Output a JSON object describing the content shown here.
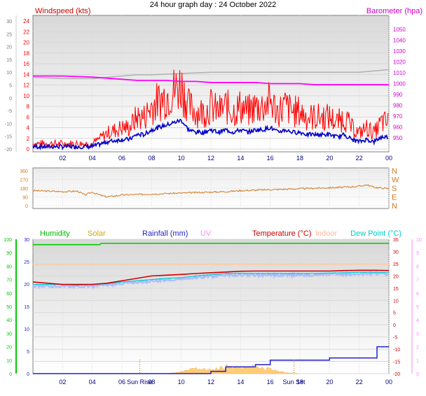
{
  "page_title": "24 hour graph day : 24 October 2022",
  "colors": {
    "wind": "#ff0000",
    "gust_base": "#0000cc",
    "baro": "#ff00ff",
    "baro_axis": "#cc00cc",
    "grey_ref": "#b0b0b0",
    "dir": "#d07a20",
    "humidity": "#00cc00",
    "solar": "#ccaa00",
    "rain": "#2222cc",
    "uv": "#ff88ff",
    "temp": "#cc0000",
    "indoor": "#ffcca0",
    "dew": "#00cccc",
    "dew_fill": "#aabbff",
    "frame": "#808080",
    "grid": "#d8d8d8",
    "tick_text": "#777777",
    "hour_text": "#000080"
  },
  "hours": [
    "02",
    "04",
    "06",
    "08",
    "10",
    "12",
    "14",
    "16",
    "18",
    "20",
    "22",
    "00"
  ],
  "panel1": {
    "left_label": "Windspeed (kts)",
    "right_label": "Barometer (hpa)",
    "left_ticks": [
      "24",
      "22",
      "20",
      "18",
      "16",
      "14",
      "12",
      "10",
      "8",
      "6",
      "4",
      "2",
      "0"
    ],
    "outer_ticks": [
      "30",
      "25",
      "20",
      "15",
      "10",
      "5",
      "0",
      "-5",
      "-10",
      "-15",
      "-20"
    ],
    "right_ticks": [
      "1050",
      "1040",
      "1030",
      "1020",
      "1010",
      "1000",
      "990",
      "980",
      "970",
      "960",
      "950"
    ]
  },
  "panel2": {
    "left_ticks": [
      "360",
      "270",
      "180",
      "90",
      "0"
    ],
    "right_labels": [
      "N",
      "W",
      "S",
      "E",
      "N"
    ]
  },
  "panel3": {
    "legend": {
      "humidity": "Humidity",
      "solar": "Solar",
      "rain": "Rainfall (mm)",
      "uv": "UV",
      "temp": "Temperature (°C)",
      "indoor": "Indoor",
      "dew": "Dew Point (°C)"
    },
    "humidity_ticks": [
      "100",
      "90",
      "80",
      "70",
      "60",
      "50",
      "40",
      "30",
      "20",
      "10",
      "0"
    ],
    "rain_ticks": [
      "30",
      "25",
      "20",
      "15",
      "10",
      "5",
      "0"
    ],
    "temp_ticks": [
      "35",
      "30",
      "25",
      "20",
      "15",
      "10",
      "5",
      "0",
      "-5",
      "-10",
      "-15",
      "-20"
    ],
    "uv_ticks": [
      "10",
      "9",
      "8",
      "7",
      "6",
      "5",
      "4",
      "3",
      "2",
      "1",
      "0"
    ],
    "sun_markers": [
      {
        "label": "Sun Rise",
        "hour": 7.2
      },
      {
        "label": "Sun Set",
        "hour": 17.6
      }
    ]
  },
  "chart_data": [
    {
      "type": "line",
      "title": "24 hour graph day : 24 October 2022",
      "ylabel": "Windspeed (kts)",
      "ylabel_right": "Barometer (hpa)",
      "ylim": [
        0,
        24
      ],
      "ylim_right": [
        950,
        1050
      ],
      "x_ticks": [
        "02",
        "04",
        "06",
        "08",
        "10",
        "12",
        "14",
        "16",
        "18",
        "20",
        "22",
        "00"
      ],
      "series": [
        {
          "name": "Windspeed (kts)",
          "x": [
            0,
            1,
            2,
            3,
            4,
            4.5,
            5,
            6,
            6.5,
            7,
            7.5,
            8,
            8.5,
            9,
            9.5,
            10,
            10.5,
            11,
            11.5,
            12,
            12.5,
            13,
            13.5,
            14,
            14.5,
            15,
            15.5,
            16,
            16.5,
            17,
            17.5,
            18,
            18.5,
            19,
            19.5,
            20,
            20.5,
            21,
            21.5,
            22,
            22.5,
            23,
            23.5,
            24
          ],
          "values": [
            1,
            1,
            1,
            1,
            1,
            2,
            3,
            4,
            4,
            6,
            6,
            8,
            9,
            10,
            11,
            12,
            8,
            7,
            7,
            8,
            7,
            8,
            7,
            8,
            7,
            8,
            8,
            9,
            7,
            8,
            7,
            7,
            6,
            6,
            6,
            6,
            5,
            6,
            4,
            3,
            4,
            3,
            5,
            5
          ]
        },
        {
          "name": "",
          "x": [
            0,
            2,
            4,
            6,
            7,
            8,
            9,
            10,
            11,
            12,
            13,
            14,
            15,
            16,
            17,
            18,
            19,
            20,
            21,
            22,
            23,
            23.5,
            24
          ],
          "values": [
            1007,
            1007,
            1006,
            1004,
            1003,
            1003,
            1003,
            1002,
            1002,
            1001,
            1001,
            1001,
            1001,
            1000,
            1000,
            1000,
            999,
            999,
            999,
            999,
            999,
            999,
            999
          ]
        }
      ]
    },
    {
      "type": "line",
      "ylim": [
        0,
        360
      ],
      "x_ticks": [
        "02",
        "04",
        "06",
        "08",
        "10",
        "12",
        "14",
        "16",
        "18",
        "20",
        "22",
        "00"
      ],
      "series": [
        {
          "name": "",
          "x": [
            0,
            1,
            2,
            3,
            3.5,
            4,
            4.5,
            5,
            6,
            7,
            8,
            9,
            10,
            11,
            12,
            13,
            14,
            15,
            16,
            17,
            18,
            19,
            20,
            21,
            22,
            22.5,
            23,
            24
          ],
          "values": [
            155,
            150,
            145,
            150,
            110,
            140,
            110,
            90,
            110,
            115,
            120,
            125,
            130,
            135,
            140,
            145,
            155,
            160,
            165,
            170,
            175,
            180,
            185,
            190,
            200,
            215,
            190,
            175
          ]
        }
      ]
    },
    {
      "type": "line",
      "ylabel": "Temperature (°C)",
      "ylim": [
        -20,
        35
      ],
      "x_ticks": [
        "02",
        "04",
        "06",
        "08",
        "10",
        "12",
        "14",
        "16",
        "18",
        "20",
        "22",
        "00"
      ],
      "series": [
        {
          "name": "Temperature (°C)",
          "x": [
            0,
            1,
            2,
            3,
            4,
            5,
            6,
            7,
            8,
            9,
            10,
            11,
            12,
            13,
            14,
            15,
            16,
            17,
            18,
            19,
            20,
            21,
            22,
            23,
            24
          ],
          "values": [
            17.5,
            17,
            16.5,
            16.5,
            16.5,
            17,
            18,
            19,
            20,
            20.3,
            20.6,
            21,
            21.3,
            21.6,
            21.9,
            22,
            22,
            22,
            22,
            22,
            22,
            22.2,
            22.3,
            22.3,
            22.2
          ]
        },
        {
          "name": "Dew Point (°C)",
          "x": [
            0,
            1,
            2,
            3,
            4,
            5,
            6,
            7,
            8,
            9,
            10,
            11,
            12,
            13,
            14,
            15,
            16,
            17,
            18,
            19,
            20,
            21,
            22,
            23,
            24
          ],
          "values": [
            16.5,
            16.5,
            16.5,
            16.2,
            16.5,
            16.8,
            17.5,
            18,
            18.5,
            19,
            19.3,
            20,
            20.5,
            21,
            21,
            21,
            21,
            21,
            21,
            21,
            21.2,
            21.3,
            21.5,
            21.5,
            21.3
          ]
        },
        {
          "name": "Humidity",
          "unit": "%",
          "x": [
            0,
            4.5,
            4.6,
            24
          ],
          "values": [
            96,
            96,
            97,
            97
          ]
        },
        {
          "name": "Rainfall (mm)",
          "unit": "mm",
          "x": [
            0,
            7,
            9,
            11,
            12,
            13,
            14,
            15,
            15.5,
            16,
            17,
            18,
            19,
            20,
            21,
            22,
            23,
            23.2,
            23.6,
            24
          ],
          "values": [
            0,
            0,
            0,
            0,
            0.5,
            1.5,
            1.5,
            2,
            2,
            3,
            3,
            3,
            3,
            3.5,
            3.5,
            3.5,
            3.5,
            6,
            6,
            6
          ]
        },
        {
          "name": "Indoor",
          "x": [
            0,
            6,
            12,
            18,
            24
          ],
          "values": [
            24.5,
            24.5,
            24.6,
            24.7,
            24.7
          ]
        },
        {
          "name": "Solar",
          "x": [
            7,
            9,
            10,
            11,
            12,
            13,
            14,
            15,
            16,
            17,
            18
          ],
          "values": [
            0,
            0,
            0.5,
            1.5,
            1,
            2,
            1.5,
            2,
            1.2,
            0.3,
            0
          ]
        }
      ]
    }
  ]
}
